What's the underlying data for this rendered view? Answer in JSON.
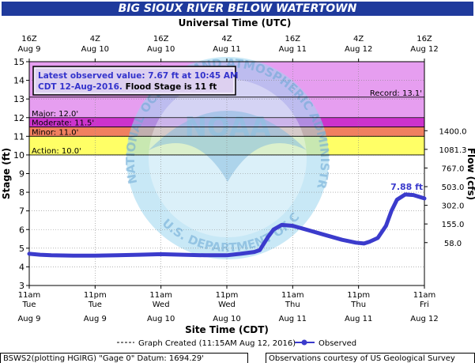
{
  "title": "BIG SIOUX RIVER BELOW WATERTOWN",
  "top_axis_title": "Universal Time (UTC)",
  "bottom_axis_title": "Site Time (CDT)",
  "left_axis_title": "Stage (ft)",
  "right_axis_title": "Flow (cfs)",
  "latest": {
    "line1": "Latest observed value: 7.67 ft at 10:45 AM",
    "line2_a": "CDT 12-Aug-2016. ",
    "line2_b": "Flood Stage is 11 ft"
  },
  "legend": {
    "created": "Graph Created (11:15AM Aug 12, 2016)",
    "observed": "Observed"
  },
  "footer": {
    "left": "BSWS2(plotting HGIRG) \"Gage 0\" Datum: 1694.29'",
    "right": "Observations courtesy of US Geological Survey"
  },
  "watermark": {
    "text_top": "NATIONAL OCEANIC AND ATMOSPHERIC ADMINISTRATION",
    "text_bottom": "U.S. DEPARTMENT OF COMMERCE",
    "center": "NOAA"
  },
  "colors": {
    "major": "#cc33cc",
    "record_band": "#e69ef0",
    "moderate": "#f08060",
    "minor": "#fffa00",
    "action": "#ffff66",
    "observed": "#3b3bcc",
    "title_bg": "#1f3a9c"
  },
  "chart_data": {
    "type": "line",
    "ylim": [
      3,
      15
    ],
    "y_ticks": [
      3,
      4,
      5,
      6,
      7,
      8,
      9,
      10,
      11,
      12,
      13,
      14,
      15
    ],
    "flow_ticks": [
      {
        "stage": 5.3,
        "label": "58.0"
      },
      {
        "stage": 6.3,
        "label": "155.0"
      },
      {
        "stage": 7.3,
        "label": "302.0"
      },
      {
        "stage": 8.3,
        "label": "503.0"
      },
      {
        "stage": 9.3,
        "label": "767.0"
      },
      {
        "stage": 10.3,
        "label": "1081.3"
      },
      {
        "stage": 11.3,
        "label": "1400.0"
      }
    ],
    "thresholds": [
      {
        "name": "Record",
        "label": "Record: 13.1'",
        "value": 13.1
      },
      {
        "name": "Major",
        "label": "Major: 12.0'",
        "value": 12.0
      },
      {
        "name": "Moderate",
        "label": "Moderate: 11.5'",
        "value": 11.5
      },
      {
        "name": "Minor",
        "label": "Minor: 11.0'",
        "value": 11.0
      },
      {
        "name": "Action",
        "label": "Action: 10.0'",
        "value": 10.0
      }
    ],
    "x_hours_span": 72,
    "bottom_ticks": [
      {
        "h": 0,
        "l1": "11am",
        "l2": "Tue",
        "l3": "Aug 9"
      },
      {
        "h": 12,
        "l1": "11pm",
        "l2": "Tue",
        "l3": "Aug 9"
      },
      {
        "h": 24,
        "l1": "11am",
        "l2": "Wed",
        "l3": "Aug 10"
      },
      {
        "h": 36,
        "l1": "11pm",
        "l2": "Wed",
        "l3": "Aug 10"
      },
      {
        "h": 48,
        "l1": "11am",
        "l2": "Thu",
        "l3": "Aug 11"
      },
      {
        "h": 60,
        "l1": "11pm",
        "l2": "Thu",
        "l3": "Aug 11"
      },
      {
        "h": 72,
        "l1": "11am",
        "l2": "Fri",
        "l3": "Aug 12"
      }
    ],
    "top_ticks": [
      {
        "h": 0,
        "l1": "16Z",
        "l2": "Aug  9"
      },
      {
        "h": 12,
        "l1": "4Z",
        "l2": "Aug 10"
      },
      {
        "h": 24,
        "l1": "16Z",
        "l2": "Aug 10"
      },
      {
        "h": 36,
        "l1": "4Z",
        "l2": "Aug 11"
      },
      {
        "h": 48,
        "l1": "16Z",
        "l2": "Aug 11"
      },
      {
        "h": 60,
        "l1": "4Z",
        "l2": "Aug 12"
      },
      {
        "h": 72,
        "l1": "16Z",
        "l2": "Aug 12"
      }
    ],
    "series": [
      {
        "name": "Observed",
        "points": [
          [
            0,
            4.7
          ],
          [
            2,
            4.65
          ],
          [
            4,
            4.62
          ],
          [
            8,
            4.6
          ],
          [
            12,
            4.6
          ],
          [
            16,
            4.62
          ],
          [
            20,
            4.65
          ],
          [
            24,
            4.68
          ],
          [
            28,
            4.65
          ],
          [
            32,
            4.62
          ],
          [
            36,
            4.62
          ],
          [
            38.5,
            4.7
          ],
          [
            41,
            4.8
          ],
          [
            42,
            4.9
          ],
          [
            43.5,
            5.6
          ],
          [
            44.5,
            6.0
          ],
          [
            46,
            6.25
          ],
          [
            48,
            6.2
          ],
          [
            51,
            5.95
          ],
          [
            54,
            5.7
          ],
          [
            57,
            5.45
          ],
          [
            59.5,
            5.3
          ],
          [
            61,
            5.25
          ],
          [
            62,
            5.35
          ],
          [
            63.5,
            5.55
          ],
          [
            65,
            6.2
          ],
          [
            66,
            7.0
          ],
          [
            67,
            7.6
          ],
          [
            68.5,
            7.88
          ],
          [
            70,
            7.85
          ],
          [
            72,
            7.67
          ]
        ]
      }
    ],
    "peak_label": "7.88 ft",
    "peak_point": [
      68.5,
      7.88
    ]
  }
}
